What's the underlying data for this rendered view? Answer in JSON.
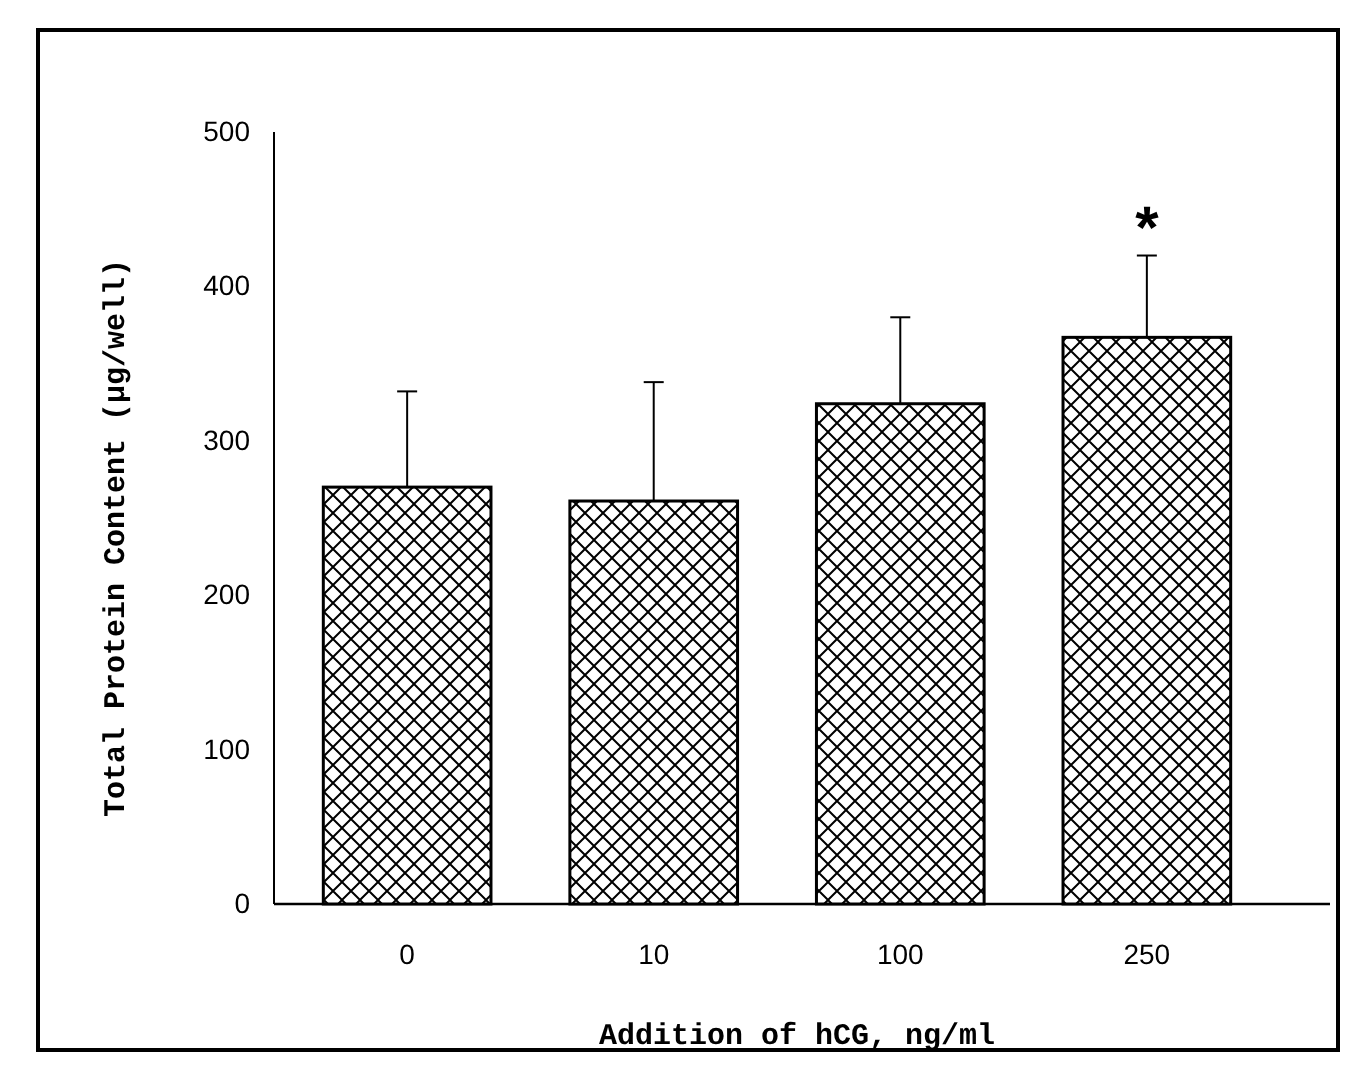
{
  "chart_data": {
    "type": "bar",
    "xlabel": "Addition of hCG, ng/ml",
    "ylabel": "Total Protein Content (µg/well)",
    "categories": [
      "0",
      "10",
      "100",
      "250"
    ],
    "values": [
      270,
      261,
      324,
      367
    ],
    "color": "#000000",
    "errors": [
      [
        270,
        332
      ],
      [
        261,
        338
      ],
      [
        324,
        380
      ],
      [
        367,
        420
      ]
    ],
    "ylim": [
      0,
      500
    ],
    "yticks": [
      0,
      100,
      200,
      300,
      400,
      500
    ],
    "grid": false,
    "annotations": [
      "*"
    ]
  }
}
